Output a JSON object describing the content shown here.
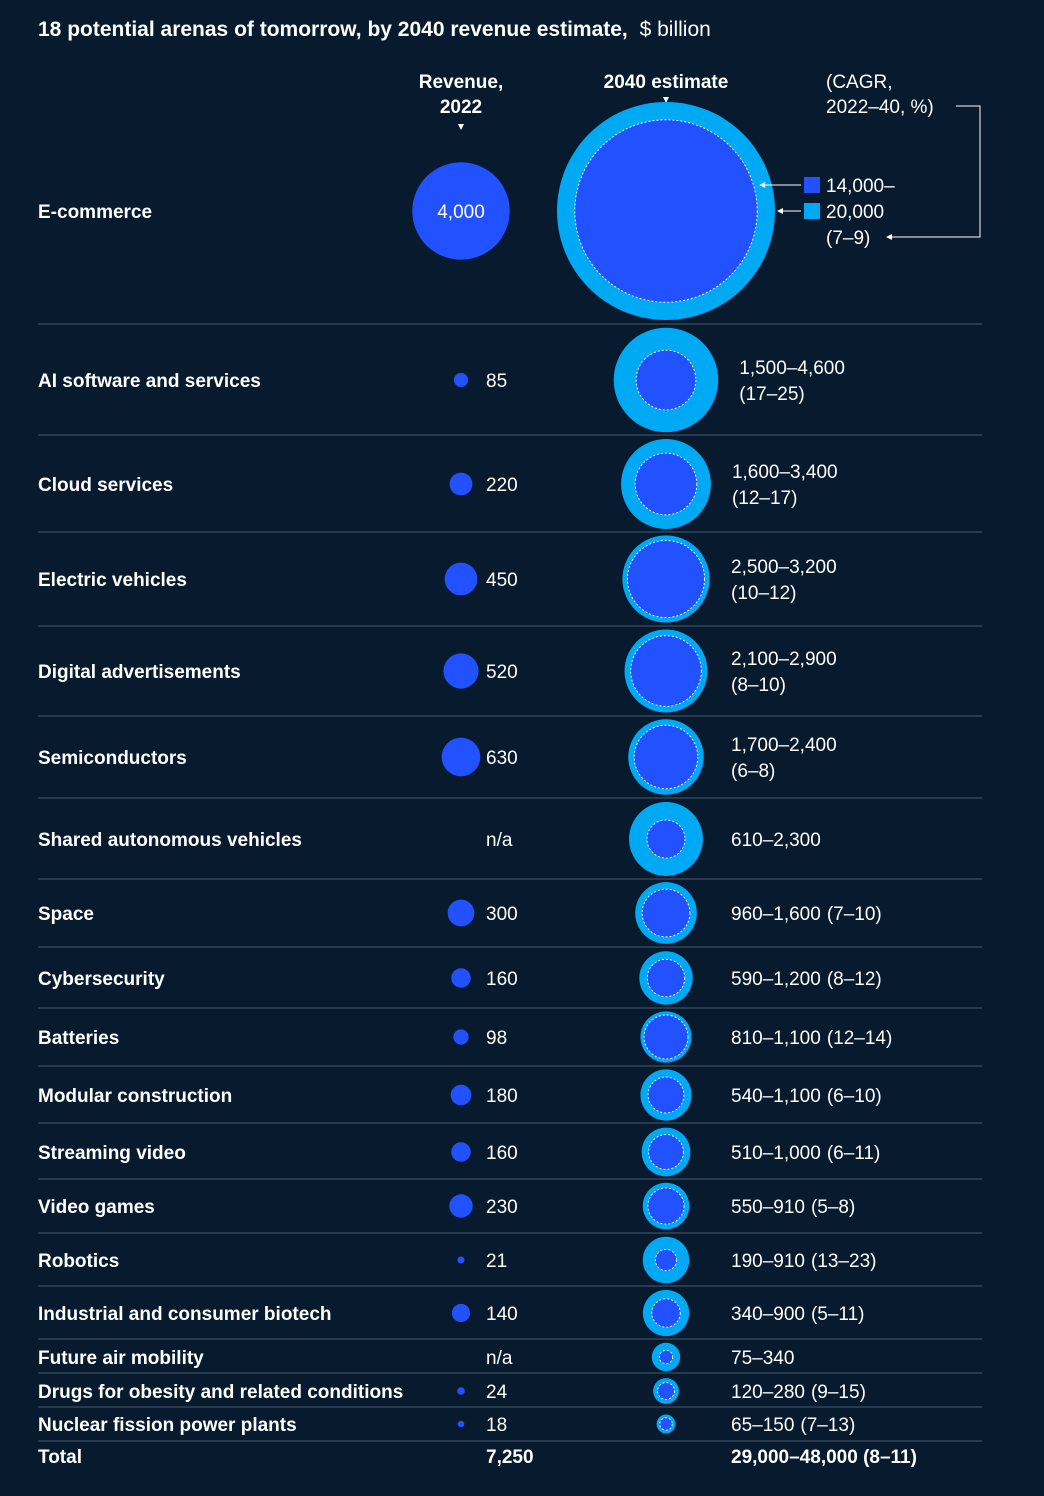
{
  "title": {
    "bold": "18 potential arenas of tomorrow, by 2040 revenue estimate,",
    "unit": "$ billion"
  },
  "headers": {
    "revenue_2022_line1": "Revenue,",
    "revenue_2022_line2": "2022",
    "estimate_2040": "2040 estimate",
    "cagr_line1": "(CAGR,",
    "cagr_line2": "2022–40, %)"
  },
  "legend": {
    "low": "14,000–",
    "high": "20,000",
    "cagr": "(7–9)"
  },
  "colors": {
    "background": "#071a2e",
    "revenue_2022": "#2251ff",
    "estimate_low": "#2251ff",
    "estimate_high": "#00a9f4",
    "divider": "#4a5a6c"
  },
  "chart_data": {
    "type": "bubble-table",
    "title": "18 potential arenas of tomorrow, by 2040 revenue estimate, $ billion",
    "unit": "$ billion",
    "columns": [
      "Revenue, 2022",
      "2040 estimate",
      "(CAGR, 2022–40, %)"
    ],
    "rows": [
      {
        "name": "E-commerce",
        "rev2022": 4000,
        "rev2022_label": "4,000",
        "low2040": 14000,
        "high2040": 20000,
        "label": "14,000–20,000",
        "cagr": "(7–9)"
      },
      {
        "name": "AI software and services",
        "rev2022": 85,
        "rev2022_label": "85",
        "low2040": 1500,
        "high2040": 4600,
        "label": "1,500–4,600",
        "cagr": "(17–25)"
      },
      {
        "name": "Cloud services",
        "rev2022": 220,
        "rev2022_label": "220",
        "low2040": 1600,
        "high2040": 3400,
        "label": "1,600–3,400",
        "cagr": "(12–17)"
      },
      {
        "name": "Electric vehicles",
        "rev2022": 450,
        "rev2022_label": "450",
        "low2040": 2500,
        "high2040": 3200,
        "label": "2,500–3,200",
        "cagr": "(10–12)"
      },
      {
        "name": "Digital advertisements",
        "rev2022": 520,
        "rev2022_label": "520",
        "low2040": 2100,
        "high2040": 2900,
        "label": "2,100–2,900",
        "cagr": "(8–10)"
      },
      {
        "name": "Semiconductors",
        "rev2022": 630,
        "rev2022_label": "630",
        "low2040": 1700,
        "high2040": 2400,
        "label": "1,700–2,400",
        "cagr": "(6–8)"
      },
      {
        "name": "Shared autonomous vehicles",
        "rev2022": null,
        "rev2022_label": "n/a",
        "low2040": 610,
        "high2040": 2300,
        "label": "610–2,300",
        "cagr": ""
      },
      {
        "name": "Space",
        "rev2022": 300,
        "rev2022_label": "300",
        "low2040": 960,
        "high2040": 1600,
        "label": "960–1,600",
        "cagr": "(7–10)"
      },
      {
        "name": "Cybersecurity",
        "rev2022": 160,
        "rev2022_label": "160",
        "low2040": 590,
        "high2040": 1200,
        "label": "590–1,200",
        "cagr": "(8–12)"
      },
      {
        "name": "Batteries",
        "rev2022": 98,
        "rev2022_label": "98",
        "low2040": 810,
        "high2040": 1100,
        "label": "810–1,100",
        "cagr": "(12–14)"
      },
      {
        "name": "Modular construction",
        "rev2022": 180,
        "rev2022_label": "180",
        "low2040": 540,
        "high2040": 1100,
        "label": "540–1,100",
        "cagr": "(6–10)"
      },
      {
        "name": "Streaming video",
        "rev2022": 160,
        "rev2022_label": "160",
        "low2040": 510,
        "high2040": 1000,
        "label": "510–1,000",
        "cagr": "(6–11)"
      },
      {
        "name": "Video games",
        "rev2022": 230,
        "rev2022_label": "230",
        "low2040": 550,
        "high2040": 910,
        "label": "550–910",
        "cagr": "(5–8)"
      },
      {
        "name": "Robotics",
        "rev2022": 21,
        "rev2022_label": "21",
        "low2040": 190,
        "high2040": 910,
        "label": "190–910",
        "cagr": "(13–23)"
      },
      {
        "name": "Industrial and consumer biotech",
        "rev2022": 140,
        "rev2022_label": "140",
        "low2040": 340,
        "high2040": 900,
        "label": "340–900",
        "cagr": "(5–11)"
      },
      {
        "name": "Future air mobility",
        "rev2022": null,
        "rev2022_label": "n/a",
        "low2040": 75,
        "high2040": 340,
        "label": "75–340",
        "cagr": ""
      },
      {
        "name": "Drugs for obesity and related conditions",
        "rev2022": 24,
        "rev2022_label": "24",
        "low2040": 120,
        "high2040": 280,
        "label": "120–280",
        "cagr": "(9–15)"
      },
      {
        "name": "Nuclear fission power plants",
        "rev2022": 18,
        "rev2022_label": "18",
        "low2040": 65,
        "high2040": 150,
        "label": "65–150",
        "cagr": "(7–13)"
      }
    ],
    "total": {
      "name": "Total",
      "rev2022_label": "7,250",
      "label": "29,000–48,000 (8–11)"
    }
  }
}
